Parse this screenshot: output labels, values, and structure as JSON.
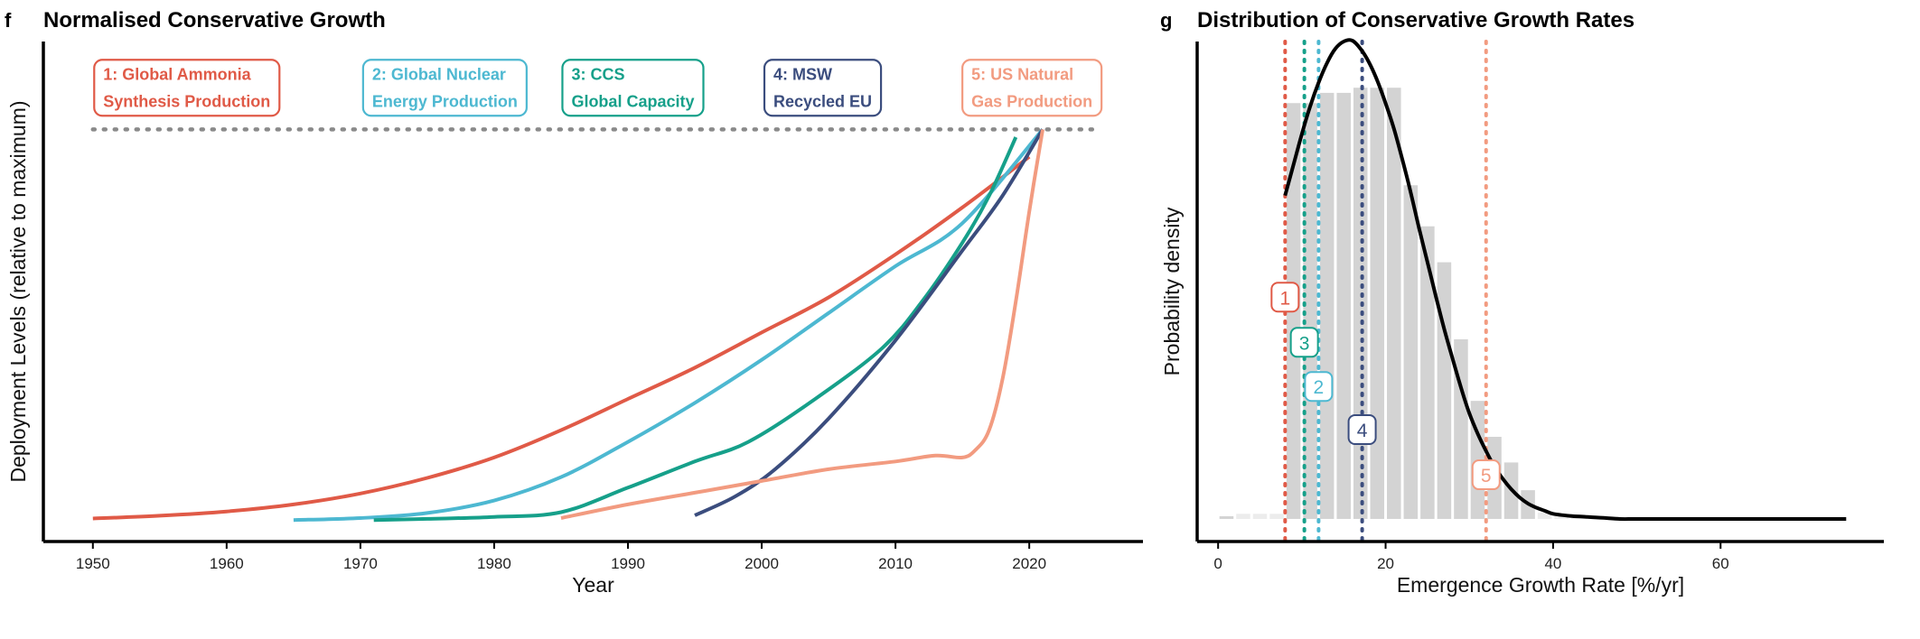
{
  "colors": {
    "ammonia": "#e05a47",
    "nuclear": "#4db8d1",
    "ccs": "#16a08a",
    "msw": "#3b4d7e",
    "gas": "#f29b80",
    "kde": "#000000",
    "bars": "#d3d3d3",
    "bars_light": "#ececec",
    "reference_line": "#8a8a8a"
  },
  "chart_data": [
    {
      "panel": "f",
      "type": "line",
      "title": "Normalised Conservative Growth",
      "xlabel": "Year",
      "ylabel": "Deployment Levels (relative to maximum)",
      "xlim": [
        1946.3,
        2028.5
      ],
      "ylim": [
        -0.055,
        1.225
      ],
      "xticks": [
        1950,
        1960,
        1970,
        1980,
        1990,
        2000,
        2010,
        2020
      ],
      "reference_line": {
        "y": 1.0,
        "x": [
          1950,
          2025
        ],
        "style": "dotted"
      },
      "series": [
        {
          "name": "1: Global Ammonia Synthesis Production",
          "name_lines": [
            "1: Global Ammonia",
            "Synthesis Production"
          ],
          "color_key": "ammonia",
          "label_anchor": [
            1950.1,
            1.095
          ],
          "x": [
            1950,
            1955,
            1960,
            1965,
            1970,
            1975,
            1980,
            1985,
            1990,
            1995,
            2000,
            2005,
            2010,
            2015,
            2020
          ],
          "y": [
            0.004,
            0.011,
            0.022,
            0.04,
            0.068,
            0.108,
            0.16,
            0.23,
            0.31,
            0.39,
            0.48,
            0.57,
            0.68,
            0.8,
            0.93
          ]
        },
        {
          "name": "2: Global Nuclear Energy Production",
          "name_lines": [
            "2: Global Nuclear",
            "Energy Production"
          ],
          "color_key": "nuclear",
          "label_anchor": [
            1970.2,
            1.095
          ],
          "x": [
            1965,
            1970,
            1975,
            1980,
            1985,
            1990,
            1995,
            2000,
            2005,
            2010,
            2015,
            2021
          ],
          "y": [
            0.0,
            0.005,
            0.018,
            0.05,
            0.11,
            0.2,
            0.3,
            0.41,
            0.53,
            0.65,
            0.76,
            1.0
          ]
        },
        {
          "name": "3: CCS Global Capacity",
          "name_lines": [
            "3: CCS",
            "Global Capacity"
          ],
          "color_key": "ccs",
          "label_anchor": [
            1985.1,
            1.095
          ],
          "x": [
            1971,
            1975,
            1980,
            1985,
            1990,
            1995,
            1999,
            2004,
            2009,
            2012,
            2015,
            2017,
            2019
          ],
          "y": [
            0.0,
            0.003,
            0.008,
            0.02,
            0.083,
            0.15,
            0.2,
            0.31,
            0.44,
            0.56,
            0.71,
            0.83,
            0.98
          ]
        },
        {
          "name": "4: MSW Recycled EU",
          "name_lines": [
            "4: MSW",
            "Recycled EU"
          ],
          "color_key": "msw",
          "label_anchor": [
            2000.2,
            1.095
          ],
          "x": [
            1995,
            1998,
            2001,
            2005,
            2010,
            2015,
            2018,
            2021
          ],
          "y": [
            0.012,
            0.06,
            0.13,
            0.26,
            0.46,
            0.69,
            0.83,
            1.0
          ]
        },
        {
          "name": "5: US Natural Gas Production",
          "name_lines": [
            "5: US Natural",
            "Gas Production"
          ],
          "color_key": "gas",
          "label_anchor": [
            2015.0,
            1.095
          ],
          "x": [
            1985,
            1990,
            1995,
            2000,
            2005,
            2010,
            2013,
            2015,
            2016,
            2017,
            2018,
            2019,
            2020,
            2021
          ],
          "y": [
            0.005,
            0.04,
            0.07,
            0.1,
            0.13,
            0.15,
            0.165,
            0.16,
            0.18,
            0.23,
            0.36,
            0.56,
            0.79,
            1.0
          ]
        }
      ]
    },
    {
      "panel": "g",
      "type": "bar",
      "title": "Distribution of Conservative Growth Rates",
      "xlabel": "Emergence Growth Rate [%/yr]",
      "ylabel": "Probability density",
      "xlim": [
        -2.5,
        79.5
      ],
      "ylim": [
        -0.0022,
        0.0465
      ],
      "xticks": [
        0,
        20,
        40,
        60
      ],
      "histogram": {
        "bin_width": 2.0,
        "bins_start": [
          0,
          2,
          4,
          6,
          8,
          10,
          12,
          14,
          16,
          18,
          20,
          22,
          24,
          26,
          28,
          30,
          32,
          34,
          36,
          38,
          40,
          42,
          44,
          46
        ],
        "density": [
          0.0,
          0.0005,
          0.0005,
          0.0005,
          0.0405,
          0.0405,
          0.0415,
          0.0415,
          0.042,
          0.042,
          0.042,
          0.0325,
          0.0285,
          0.025,
          0.0175,
          0.0115,
          0.008,
          0.0055,
          0.0028,
          0.0006,
          0.0005,
          0.0004,
          0.0003,
          0.0002
        ],
        "light_bins": [
          1,
          2,
          3,
          19,
          20,
          21,
          22,
          23
        ]
      },
      "kde": {
        "x": [
          8,
          9,
          10,
          11,
          12,
          13,
          14,
          15,
          16,
          17,
          18,
          19,
          20,
          21,
          22,
          23,
          24,
          25,
          26,
          27,
          28,
          29,
          30,
          31,
          32,
          33,
          34,
          35,
          36,
          37,
          38,
          39,
          40,
          42,
          44,
          46,
          48,
          50,
          55,
          60,
          65,
          70,
          75
        ],
        "y": [
          0.0315,
          0.0345,
          0.0375,
          0.0402,
          0.0425,
          0.0444,
          0.0458,
          0.0465,
          0.0466,
          0.0458,
          0.0445,
          0.0427,
          0.0405,
          0.038,
          0.035,
          0.0318,
          0.0283,
          0.025,
          0.0217,
          0.0185,
          0.0156,
          0.0128,
          0.0103,
          0.0083,
          0.0066,
          0.0051,
          0.0039,
          0.0029,
          0.0021,
          0.0015,
          0.0011,
          0.0008,
          0.0005,
          0.0003,
          0.0002,
          0.0001,
          0.0,
          0.0,
          0.0,
          0.0,
          0.0,
          0.0,
          0.0
        ]
      },
      "rate_markers": [
        {
          "label": "1",
          "x": 8.0,
          "label_y": 0.0216,
          "color_key": "ammonia"
        },
        {
          "label": "3",
          "x": 10.3,
          "label_y": 0.0172,
          "color_key": "ccs"
        },
        {
          "label": "2",
          "x": 12.0,
          "label_y": 0.0129,
          "color_key": "nuclear"
        },
        {
          "label": "4",
          "x": 17.2,
          "label_y": 0.0087,
          "color_key": "msw"
        },
        {
          "label": "5",
          "x": 32.0,
          "label_y": 0.0043,
          "color_key": "gas"
        }
      ]
    }
  ]
}
